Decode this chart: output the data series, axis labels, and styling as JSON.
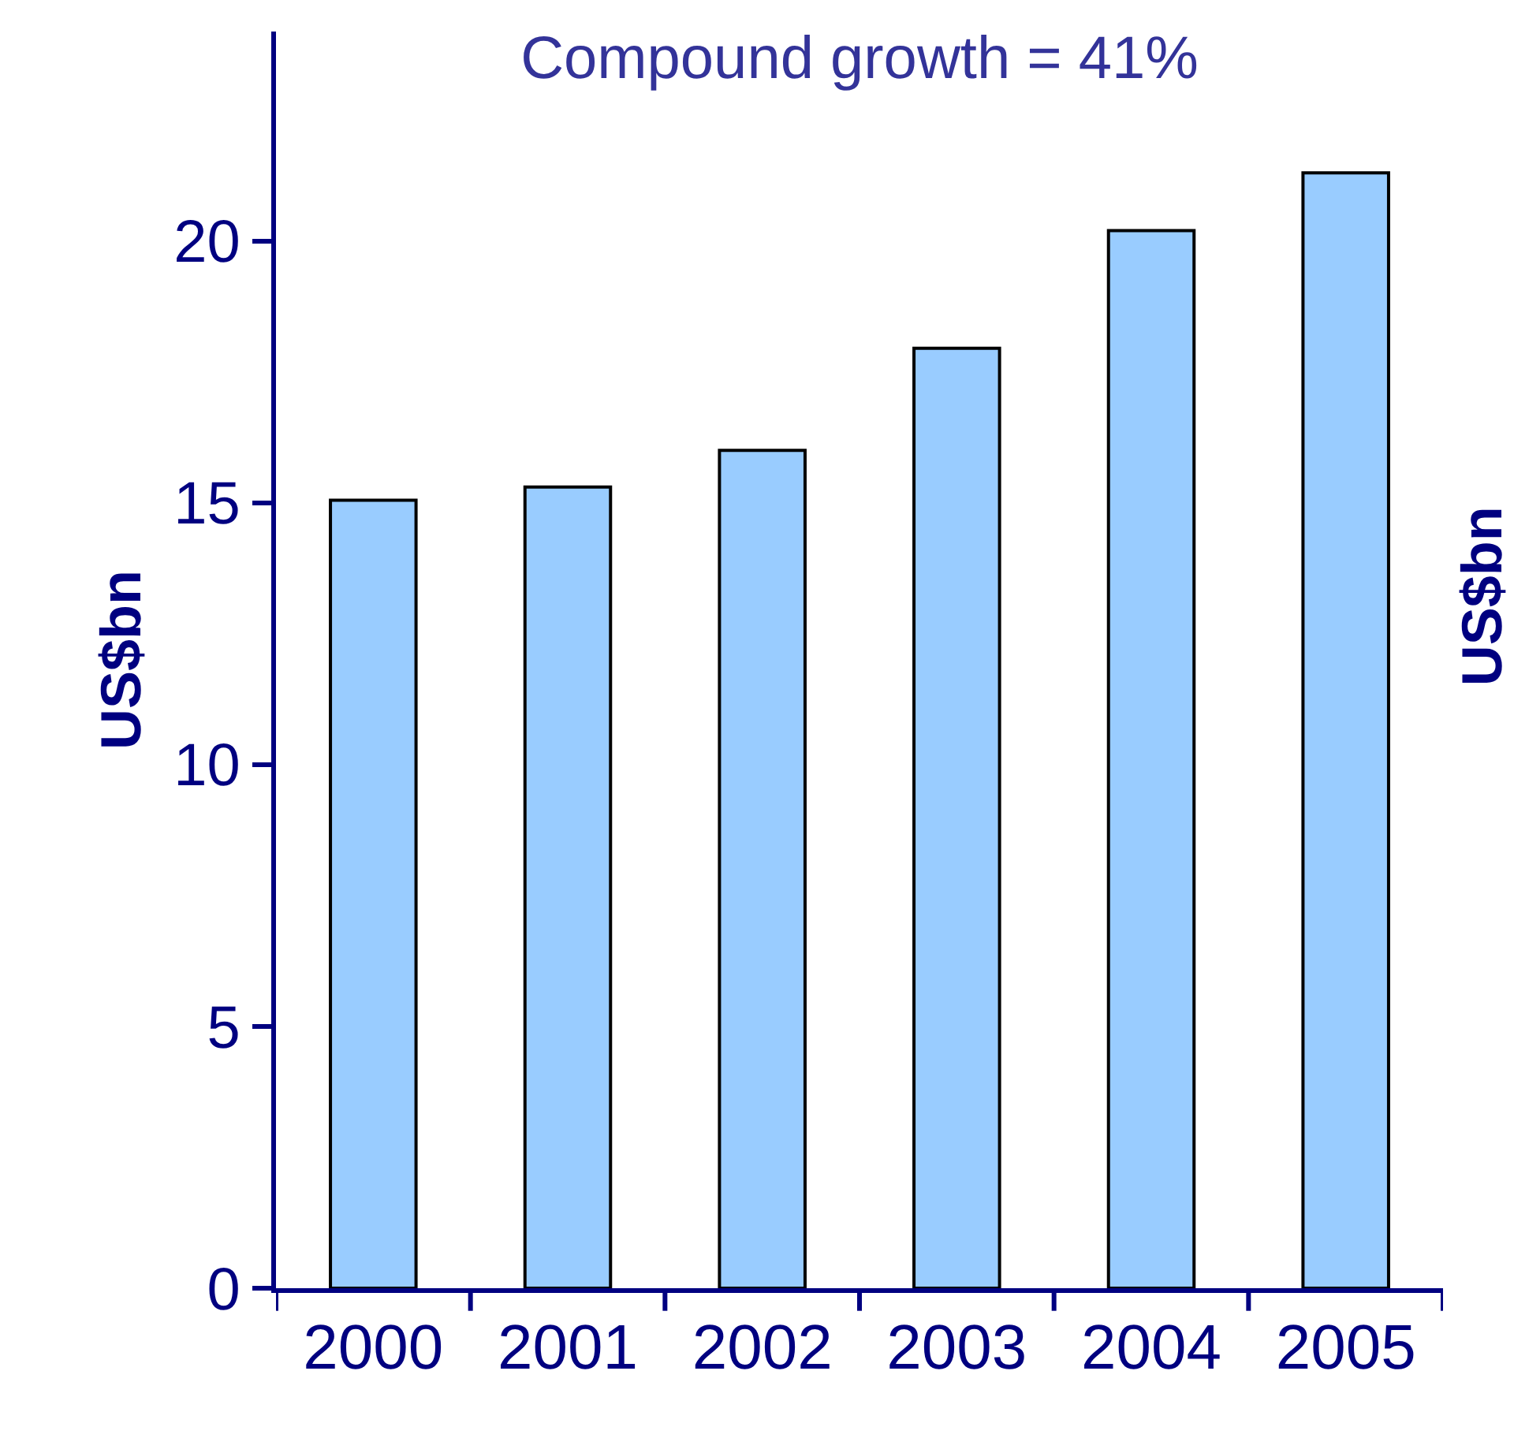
{
  "chart_data": {
    "type": "bar",
    "title": "Compound growth = 41%",
    "ylabel": "US$bn",
    "y2label": "US$bn",
    "categories": [
      "2000",
      "2001",
      "2002",
      "2003",
      "2004",
      "2005"
    ],
    "values": [
      15.05,
      15.3,
      16.0,
      17.95,
      20.2,
      21.3
    ],
    "color": "#99ccff",
    "ylim": [
      0,
      24
    ],
    "yticks": [
      0,
      5,
      10,
      15,
      20
    ]
  }
}
